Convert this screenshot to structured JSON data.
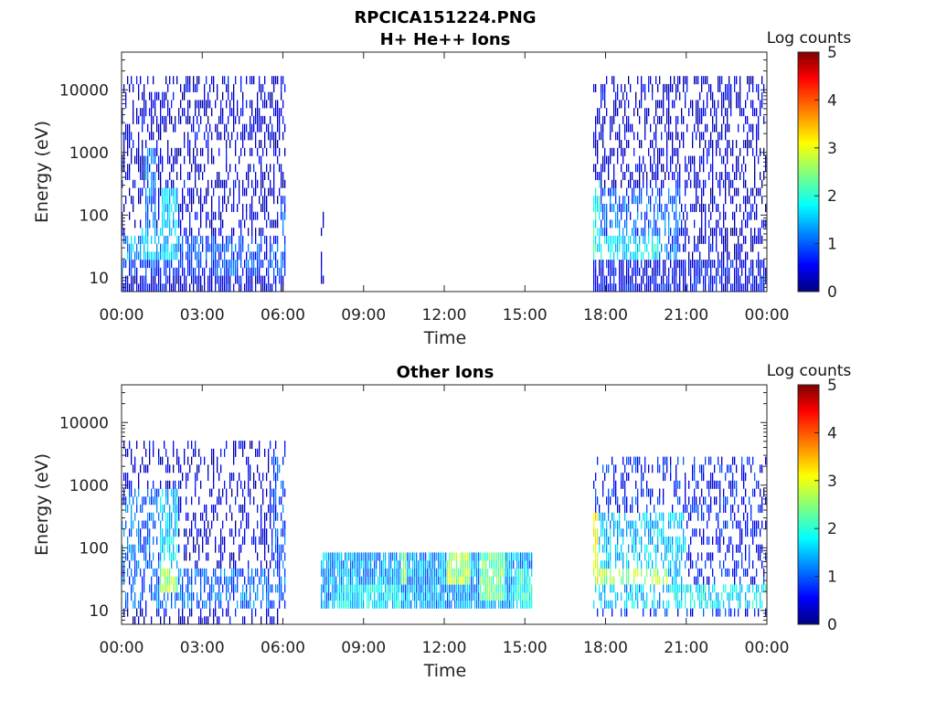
{
  "figure_title": "RPCICA151224.PNG",
  "colors": {
    "colormap": [
      "#00007f",
      "#0000ff",
      "#007fff",
      "#00ffff",
      "#7fff7f",
      "#ffff00",
      "#ff7f00",
      "#ff0000",
      "#7f0000"
    ],
    "axes": "#262626",
    "background": "#ffffff"
  },
  "chart_data": [
    {
      "type": "heatmap",
      "title": "H+ He++ Ions",
      "xlabel": "Time",
      "ylabel": "Energy (eV)",
      "x_ticks": [
        "00:00",
        "03:00",
        "06:00",
        "09:00",
        "12:00",
        "15:00",
        "18:00",
        "21:00",
        "00:00"
      ],
      "x_range_hours": [
        0,
        24
      ],
      "y_scale": "log",
      "y_ticks": [
        10,
        100,
        1000,
        10000
      ],
      "y_tick_labels": [
        "10",
        "100",
        "1000",
        "10000"
      ],
      "y_range": [
        6,
        40000
      ],
      "colorbar": {
        "label": "Log counts",
        "range": [
          0,
          5
        ],
        "ticks": [
          "0",
          "1",
          "2",
          "3",
          "4",
          "5"
        ]
      },
      "data_intervals_hours": [
        [
          0.0,
          6.1
        ],
        [
          7.4,
          7.55
        ],
        [
          17.55,
          24.0
        ]
      ],
      "regions": [
        {
          "t": [
            0.0,
            6.1
          ],
          "e": [
            6,
            15000
          ],
          "level": 0.4,
          "density": 0.38
        },
        {
          "t": [
            0.0,
            6.1
          ],
          "e": [
            6,
            20
          ],
          "level": 0.5,
          "density": 0.75
        },
        {
          "t": [
            0.0,
            6.1
          ],
          "e": [
            12,
            45
          ],
          "level": 0.9,
          "density": 0.6
        },
        {
          "t": [
            0.9,
            1.3
          ],
          "e": [
            60,
            1300
          ],
          "level": 1.1,
          "density": 0.7
        },
        {
          "t": [
            1.5,
            2.1
          ],
          "e": [
            20,
            250
          ],
          "level": 1.6,
          "density": 0.75
        },
        {
          "t": [
            0.2,
            1.6
          ],
          "e": [
            18,
            60
          ],
          "level": 1.5,
          "density": 0.5
        },
        {
          "t": [
            5.9,
            6.1
          ],
          "e": [
            25,
            300
          ],
          "level": 1.0,
          "density": 0.6
        },
        {
          "t": [
            7.4,
            7.55
          ],
          "e": [
            6,
            100
          ],
          "level": 0.3,
          "density": 0.5
        },
        {
          "t": [
            17.55,
            24.0
          ],
          "e": [
            6,
            15000
          ],
          "level": 0.4,
          "density": 0.38
        },
        {
          "t": [
            17.55,
            24.0
          ],
          "e": [
            6,
            20
          ],
          "level": 0.6,
          "density": 0.75
        },
        {
          "t": [
            17.55,
            20.8
          ],
          "e": [
            18,
            300
          ],
          "level": 1.1,
          "density": 0.55
        },
        {
          "t": [
            17.55,
            20.0
          ],
          "e": [
            20,
            45
          ],
          "level": 1.8,
          "density": 0.6
        },
        {
          "t": [
            17.55,
            17.8
          ],
          "e": [
            25,
            400
          ],
          "level": 2.0,
          "density": 0.7
        }
      ]
    },
    {
      "type": "heatmap",
      "title": "Other Ions",
      "xlabel": "Time",
      "ylabel": "Energy (eV)",
      "x_ticks": [
        "00:00",
        "03:00",
        "06:00",
        "09:00",
        "12:00",
        "15:00",
        "18:00",
        "21:00",
        "00:00"
      ],
      "x_range_hours": [
        0,
        24
      ],
      "y_scale": "log",
      "y_ticks": [
        10,
        100,
        1000,
        10000
      ],
      "y_tick_labels": [
        "10",
        "100",
        "1000",
        "10000"
      ],
      "y_range": [
        6,
        40000
      ],
      "colorbar": {
        "label": "Log counts",
        "range": [
          0,
          5
        ],
        "ticks": [
          "0",
          "1",
          "2",
          "3",
          "4",
          "5"
        ]
      },
      "data_intervals_hours": [
        [
          0.0,
          6.1
        ],
        [
          7.4,
          15.3
        ],
        [
          17.55,
          24.0
        ]
      ],
      "regions": [
        {
          "t": [
            0.0,
            6.1
          ],
          "e": [
            6,
            5000
          ],
          "level": 0.4,
          "density": 0.3
        },
        {
          "t": [
            0.0,
            6.1
          ],
          "e": [
            10,
            45
          ],
          "level": 1.1,
          "density": 0.55
        },
        {
          "t": [
            0.0,
            1.5
          ],
          "e": [
            20,
            1000
          ],
          "level": 1.1,
          "density": 0.5
        },
        {
          "t": [
            1.4,
            2.1
          ],
          "e": [
            20,
            1000
          ],
          "level": 1.7,
          "density": 0.7
        },
        {
          "t": [
            1.4,
            2.1
          ],
          "e": [
            20,
            45
          ],
          "level": 2.6,
          "density": 0.5
        },
        {
          "t": [
            5.6,
            6.1
          ],
          "e": [
            15,
            3000
          ],
          "level": 1.0,
          "density": 0.5
        },
        {
          "t": [
            7.4,
            15.3
          ],
          "e": [
            10,
            80
          ],
          "level": 1.4,
          "density": 0.92
        },
        {
          "t": [
            8.0,
            10.4
          ],
          "e": [
            10,
            25
          ],
          "level": 1.8,
          "density": 0.85
        },
        {
          "t": [
            10.4,
            10.6
          ],
          "e": [
            30,
            80
          ],
          "level": 2.6,
          "density": 0.9
        },
        {
          "t": [
            12.1,
            13.0
          ],
          "e": [
            25,
            80
          ],
          "level": 2.7,
          "density": 0.85
        },
        {
          "t": [
            13.3,
            14.3
          ],
          "e": [
            15,
            80
          ],
          "level": 2.4,
          "density": 0.85
        },
        {
          "t": [
            14.6,
            15.3
          ],
          "e": [
            10,
            45
          ],
          "level": 2.0,
          "density": 0.85
        },
        {
          "t": [
            17.55,
            24.0
          ],
          "e": [
            8,
            3000
          ],
          "level": 0.7,
          "density": 0.35
        },
        {
          "t": [
            17.55,
            21.0
          ],
          "e": [
            10,
            400
          ],
          "level": 1.6,
          "density": 0.55
        },
        {
          "t": [
            17.55,
            20.3
          ],
          "e": [
            25,
            50
          ],
          "level": 2.7,
          "density": 0.55
        },
        {
          "t": [
            20.3,
            24.0
          ],
          "e": [
            10,
            25
          ],
          "level": 1.8,
          "density": 0.55
        },
        {
          "t": [
            17.55,
            17.75
          ],
          "e": [
            25,
            400
          ],
          "level": 3.0,
          "density": 0.7
        }
      ]
    }
  ]
}
